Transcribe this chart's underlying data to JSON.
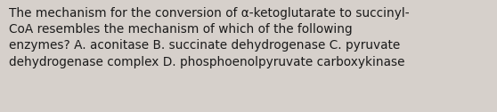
{
  "text": "The mechanism for the conversion of α-ketoglutarate to succinyl-\nCoA resembles the mechanism of which of the following\nenzymes? A. aconitase B. succinate dehydrogenase C. pyruvate\ndehydrogenase complex D. phosphoenolpyruvate carboxykinase",
  "background_color": "#d6d0cb",
  "text_color": "#1a1a1a",
  "font_size": 9.8,
  "fig_width": 5.58,
  "fig_height": 1.26,
  "dpi": 100
}
